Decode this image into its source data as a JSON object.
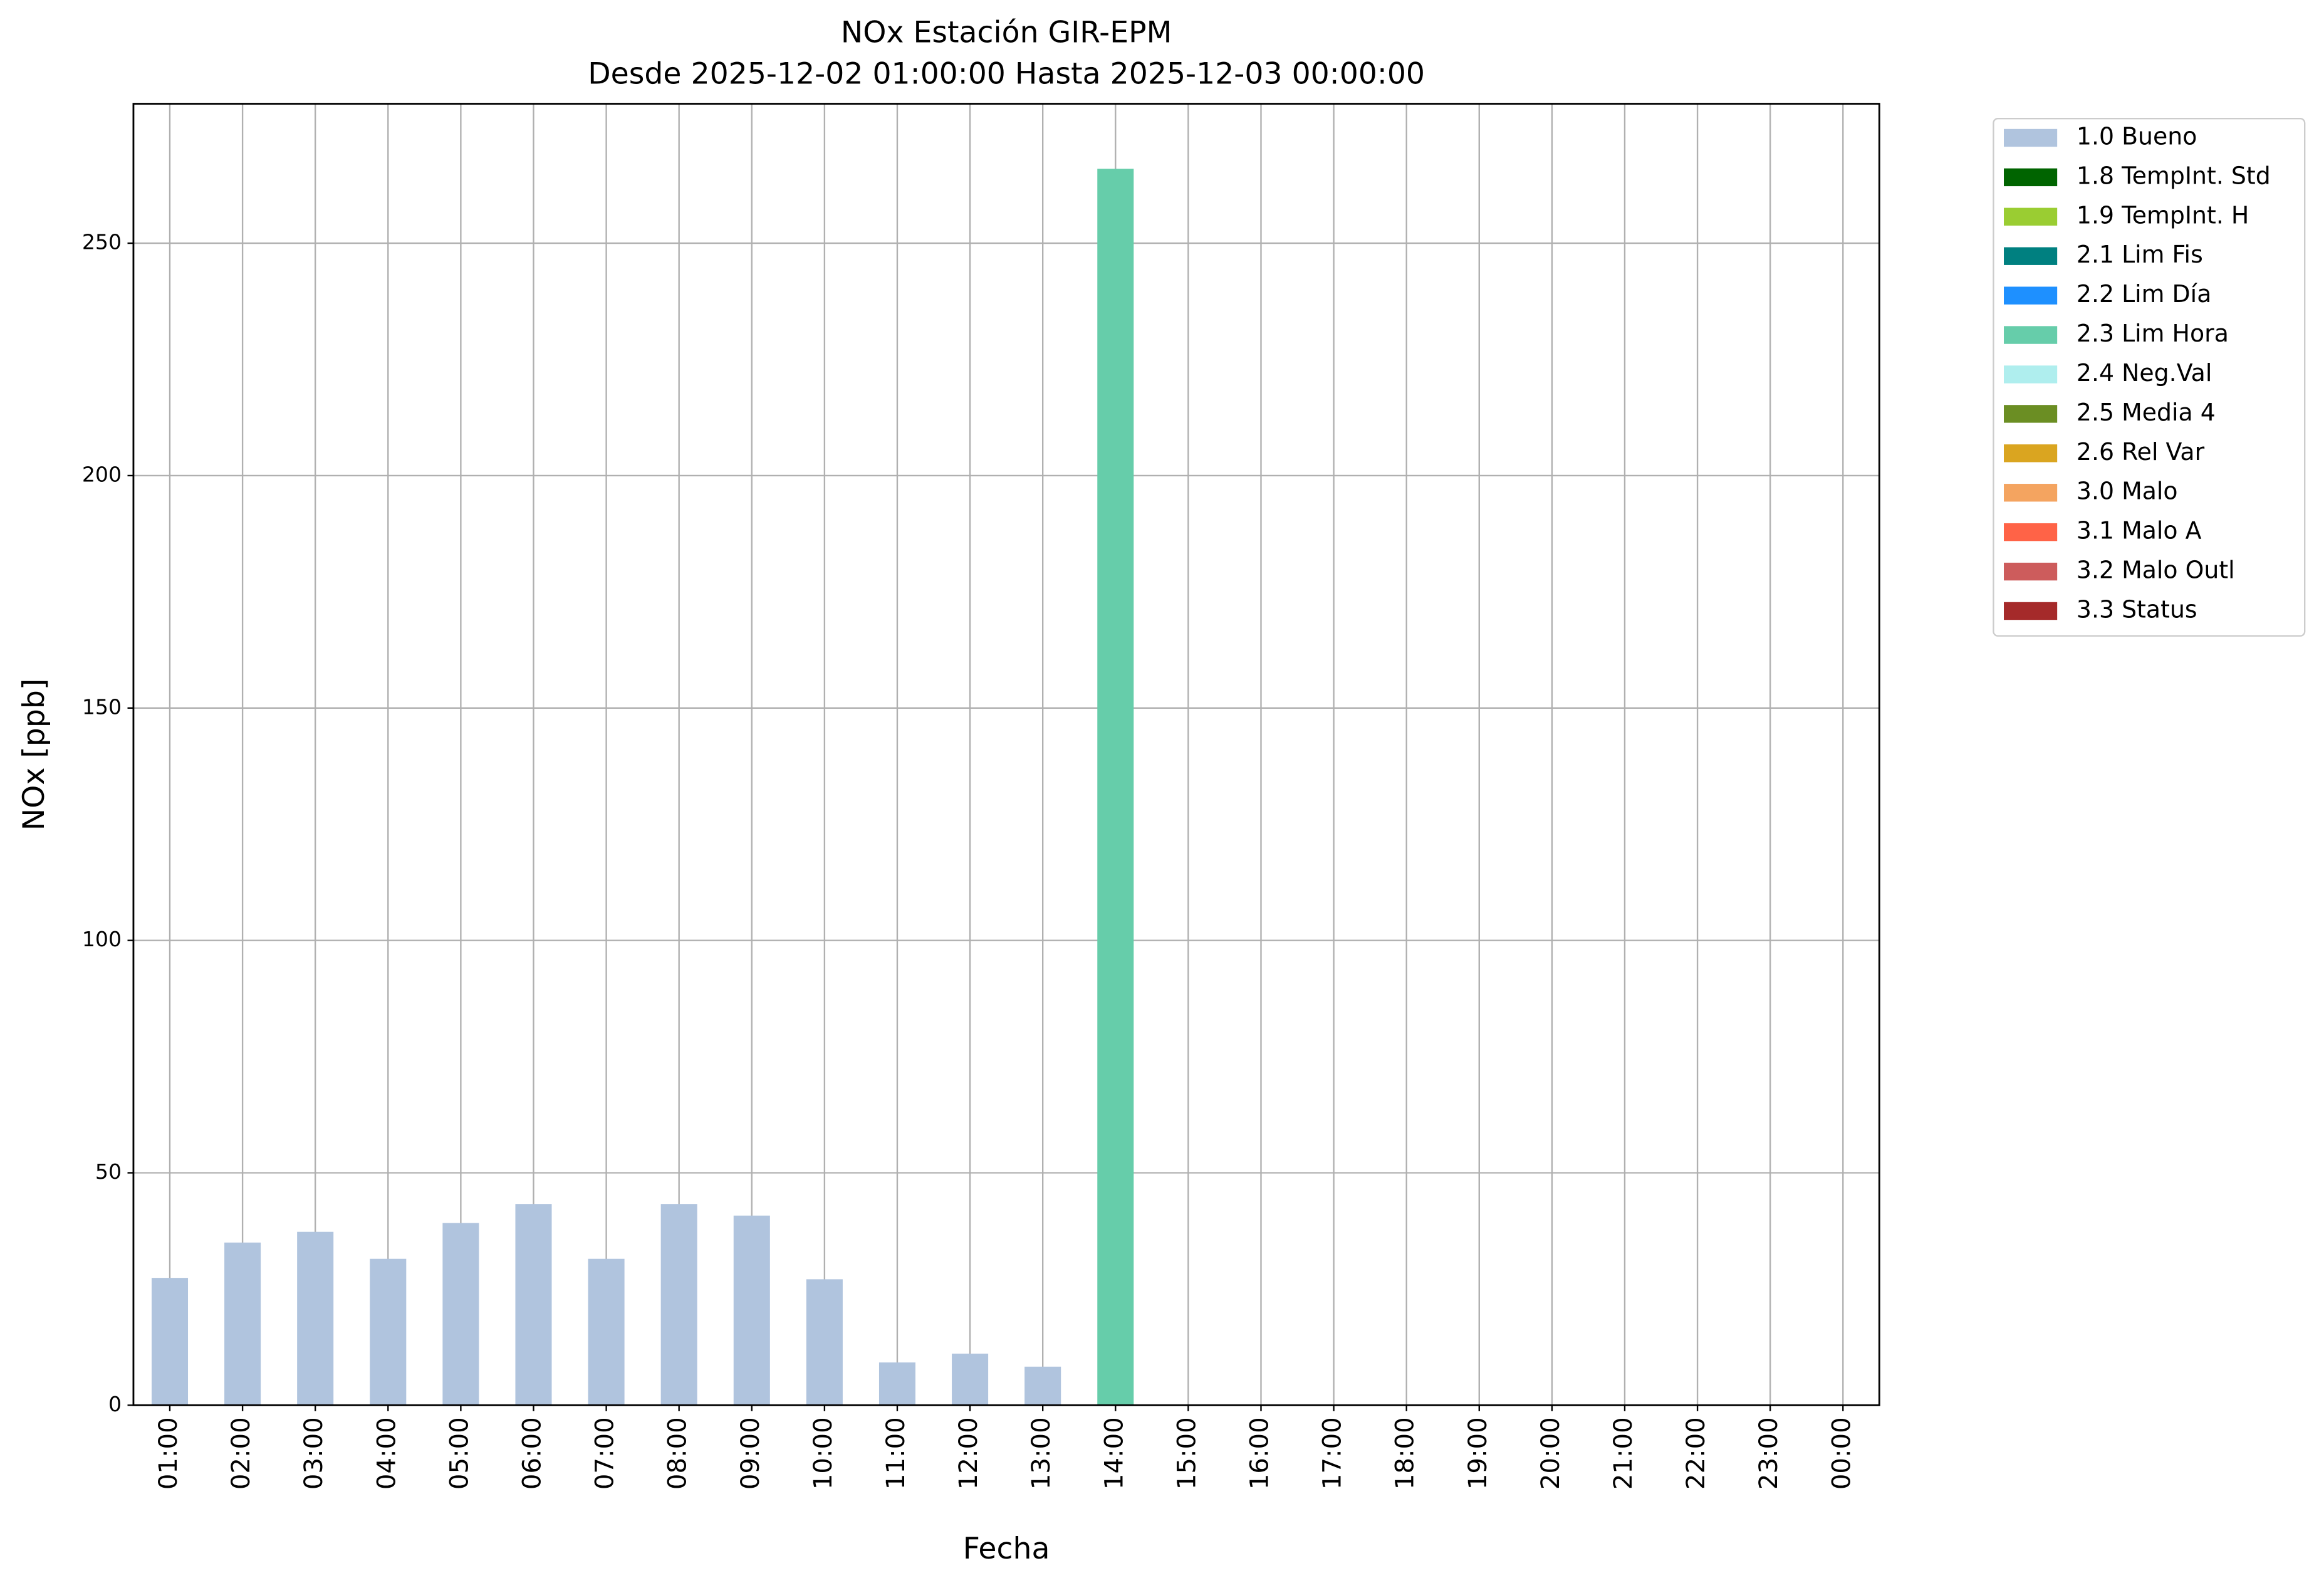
{
  "chart_data": {
    "type": "bar",
    "stacked": true,
    "title": "NOx Estación GIR-EPM",
    "subtitle": "Desde 2025-12-02 01:00:00 Hasta 2025-12-03 00:00:00",
    "xlabel": "Fecha",
    "ylabel": "NOx [ppb]",
    "categories": [
      "01:00",
      "02:00",
      "03:00",
      "04:00",
      "05:00",
      "06:00",
      "07:00",
      "08:00",
      "09:00",
      "10:00",
      "11:00",
      "12:00",
      "13:00",
      "14:00",
      "15:00",
      "16:00",
      "17:00",
      "18:00",
      "19:00",
      "20:00",
      "21:00",
      "22:00",
      "23:00",
      "00:00"
    ],
    "ylim": [
      0,
      280
    ],
    "yticks": [
      0,
      50,
      100,
      150,
      200,
      250
    ],
    "grid": true,
    "series": [
      {
        "name": "1.0 Bueno",
        "color": "#b0c4de",
        "values": [
          27.4,
          35.0,
          37.3,
          31.5,
          39.2,
          43.3,
          31.5,
          43.3,
          40.8,
          27.1,
          9.2,
          11.1,
          8.3,
          null,
          null,
          null,
          null,
          null,
          null,
          null,
          null,
          null,
          null,
          null
        ]
      },
      {
        "name": "1.8 TempInt. Std",
        "color": "#006400",
        "values": [
          null,
          null,
          null,
          null,
          null,
          null,
          null,
          null,
          null,
          null,
          null,
          null,
          null,
          null,
          null,
          null,
          null,
          null,
          null,
          null,
          null,
          null,
          null,
          null
        ]
      },
      {
        "name": "1.9 TempInt. H",
        "color": "#9acd32",
        "values": [
          null,
          null,
          null,
          null,
          null,
          null,
          null,
          null,
          null,
          null,
          null,
          null,
          null,
          null,
          null,
          null,
          null,
          null,
          null,
          null,
          null,
          null,
          null,
          null
        ]
      },
      {
        "name": "2.1 Lim Fis",
        "color": "#008080",
        "values": [
          null,
          null,
          null,
          null,
          null,
          null,
          null,
          null,
          null,
          null,
          null,
          null,
          null,
          null,
          null,
          null,
          null,
          null,
          null,
          null,
          null,
          null,
          null,
          null
        ]
      },
      {
        "name": "2.2 Lim Día",
        "color": "#1e90ff",
        "values": [
          null,
          null,
          null,
          null,
          null,
          null,
          null,
          null,
          null,
          null,
          null,
          null,
          null,
          null,
          null,
          null,
          null,
          null,
          null,
          null,
          null,
          null,
          null,
          null
        ]
      },
      {
        "name": "2.3 Lim Hora",
        "color": "#66cdaa",
        "values": [
          null,
          null,
          null,
          null,
          null,
          null,
          null,
          null,
          null,
          null,
          null,
          null,
          null,
          266,
          null,
          null,
          null,
          null,
          null,
          null,
          null,
          null,
          null,
          null
        ]
      },
      {
        "name": "2.4 Neg.Val",
        "color": "#afeeee",
        "values": [
          null,
          null,
          null,
          null,
          null,
          null,
          null,
          null,
          null,
          null,
          null,
          null,
          null,
          null,
          null,
          null,
          null,
          null,
          null,
          null,
          null,
          null,
          null,
          null
        ]
      },
      {
        "name": "2.5 Media 4",
        "color": "#6b8e23",
        "values": [
          null,
          null,
          null,
          null,
          null,
          null,
          null,
          null,
          null,
          null,
          null,
          null,
          null,
          null,
          null,
          null,
          null,
          null,
          null,
          null,
          null,
          null,
          null,
          null
        ]
      },
      {
        "name": "2.6 Rel Var",
        "color": "#daa520",
        "values": [
          null,
          null,
          null,
          null,
          null,
          null,
          null,
          null,
          null,
          null,
          null,
          null,
          null,
          null,
          null,
          null,
          null,
          null,
          null,
          null,
          null,
          null,
          null,
          null
        ]
      },
      {
        "name": "3.0 Malo",
        "color": "#f4a460",
        "values": [
          null,
          null,
          null,
          null,
          null,
          null,
          null,
          null,
          null,
          null,
          null,
          null,
          null,
          null,
          null,
          null,
          null,
          null,
          null,
          null,
          null,
          null,
          null,
          null
        ]
      },
      {
        "name": "3.1 Malo A",
        "color": "#ff6347",
        "values": [
          null,
          null,
          null,
          null,
          null,
          null,
          null,
          null,
          null,
          null,
          null,
          null,
          null,
          null,
          null,
          null,
          null,
          null,
          null,
          null,
          null,
          null,
          null,
          null
        ]
      },
      {
        "name": "3.2 Malo Outl",
        "color": "#cd5c5c",
        "values": [
          null,
          null,
          null,
          null,
          null,
          null,
          null,
          null,
          null,
          null,
          null,
          null,
          null,
          null,
          null,
          null,
          null,
          null,
          null,
          null,
          null,
          null,
          null,
          null
        ]
      },
      {
        "name": "3.3 Status",
        "color": "#a52a2a",
        "values": [
          null,
          null,
          null,
          null,
          null,
          null,
          null,
          null,
          null,
          null,
          null,
          null,
          null,
          null,
          null,
          null,
          null,
          null,
          null,
          null,
          null,
          null,
          null,
          null
        ]
      }
    ]
  }
}
